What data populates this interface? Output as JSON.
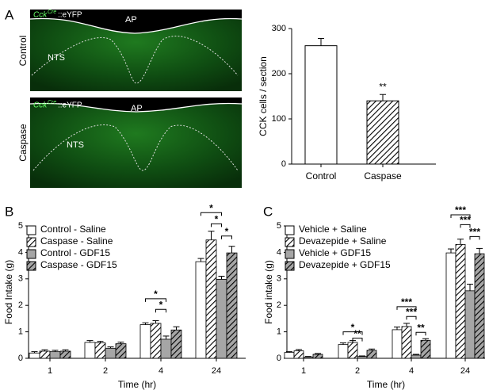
{
  "panel_labels": [
    "A",
    "B",
    "C"
  ],
  "images": [
    {
      "row_label": "Control",
      "marker": {
        "gene": "Cck",
        "super": "Cre",
        "suffix": "::eYFP"
      },
      "regions": [
        "AP",
        "NTS"
      ]
    },
    {
      "row_label": "Caspase",
      "marker": {
        "gene": "Cck",
        "super": "Cre",
        "suffix": "::eYFP"
      },
      "regions": [
        "AP",
        "NTS"
      ]
    }
  ],
  "chart_data": [
    {
      "type": "bar",
      "ylabel": "CCK cells / section",
      "categories": [
        "Control",
        "Caspase"
      ],
      "values": [
        262,
        140
      ],
      "errors": [
        16,
        14
      ],
      "colors": [
        "#ffffff",
        "#ffffff"
      ],
      "hatch": [
        false,
        true
      ],
      "value_annotations": [
        null,
        "**"
      ],
      "ylim": [
        0,
        300
      ],
      "yticks": [
        0,
        100,
        200,
        300
      ]
    },
    {
      "type": "grouped_bar",
      "xlabel": "Time (hr)",
      "ylabel": "Food Intake (g)",
      "categories": [
        "1",
        "2",
        "4",
        "24"
      ],
      "series": [
        {
          "name": "Control - Saline",
          "color": "#ffffff",
          "hatch": false,
          "values": [
            0.2,
            0.6,
            1.27,
            3.65
          ],
          "errors": [
            0.05,
            0.07,
            0.07,
            0.12
          ]
        },
        {
          "name": "Caspase - Saline",
          "color": "#ffffff",
          "hatch": true,
          "values": [
            0.27,
            0.58,
            1.32,
            4.47
          ],
          "errors": [
            0.05,
            0.06,
            0.1,
            0.33
          ]
        },
        {
          "name": "Control - GDF15",
          "color": "#a6a6a6",
          "hatch": false,
          "values": [
            0.25,
            0.38,
            0.72,
            2.98
          ],
          "errors": [
            0.05,
            0.05,
            0.12,
            0.12
          ]
        },
        {
          "name": "Caspase - GDF15",
          "color": "#a6a6a6",
          "hatch": true,
          "values": [
            0.27,
            0.55,
            1.07,
            3.98
          ],
          "errors": [
            0.05,
            0.06,
            0.12,
            0.25
          ]
        }
      ],
      "annotations": [
        "*",
        "*",
        "*",
        "*",
        "*"
      ],
      "legend": "upper left",
      "ylim": [
        0,
        5
      ],
      "yticks": [
        0,
        1,
        2,
        3,
        4,
        5
      ]
    },
    {
      "type": "grouped_bar",
      "xlabel": "Time (hr)",
      "ylabel": "Food intake (g)",
      "categories": [
        "1",
        "2",
        "4",
        "24"
      ],
      "series": [
        {
          "name": "Vehicle + Saline",
          "color": "#ffffff",
          "hatch": false,
          "values": [
            0.22,
            0.52,
            1.08,
            3.98
          ],
          "errors": [
            0.03,
            0.06,
            0.1,
            0.15
          ]
        },
        {
          "name": "Devazepide + Saline",
          "color": "#ffffff",
          "hatch": true,
          "values": [
            0.28,
            0.6,
            1.2,
            4.3
          ],
          "errors": [
            0.05,
            0.07,
            0.12,
            0.2
          ]
        },
        {
          "name": "Vehicle + GDF15",
          "color": "#a6a6a6",
          "hatch": false,
          "values": [
            0.05,
            0.07,
            0.12,
            2.55
          ],
          "errors": [
            0.02,
            0.02,
            0.03,
            0.25
          ]
        },
        {
          "name": "Devazepide + GDF15",
          "color": "#a6a6a6",
          "hatch": true,
          "values": [
            0.15,
            0.3,
            0.68,
            3.95
          ],
          "errors": [
            0.03,
            0.05,
            0.06,
            0.2
          ]
        }
      ],
      "annotations": [
        "*",
        "**",
        "***",
        "***",
        "**",
        "***",
        "***",
        "***"
      ],
      "legend": "upper left",
      "ylim": [
        0,
        5
      ],
      "yticks": [
        0,
        1,
        2,
        3,
        4,
        5
      ]
    }
  ]
}
